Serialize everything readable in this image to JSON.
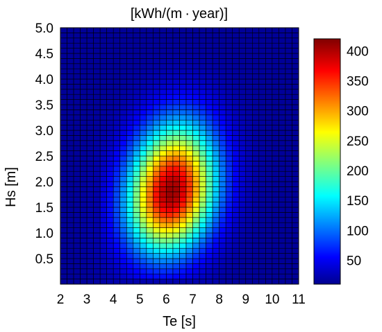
{
  "chart_data": {
    "type": "heatmap",
    "title": "[kWh/(m · year)]",
    "xlabel": "Te [s]",
    "ylabel": "Hs [m]",
    "xlim": [
      2,
      11
    ],
    "ylim": [
      0,
      5
    ],
    "x_ticks": [
      "2",
      "3",
      "4",
      "5",
      "6",
      "7",
      "8",
      "9",
      "10",
      "11"
    ],
    "y_ticks": [
      "0.5",
      "1.0",
      "1.5",
      "2.0",
      "2.5",
      "3.0",
      "3.5",
      "4.0",
      "4.5",
      "5.0"
    ],
    "colorbar": {
      "min": 10,
      "max": 420,
      "ticks": [
        "50",
        "100",
        "150",
        "200",
        "250",
        "300",
        "350",
        "400"
      ],
      "tick_values": [
        50,
        100,
        150,
        200,
        250,
        300,
        350,
        400
      ],
      "colormap": "jet"
    },
    "grid": {
      "x_bin_width": 0.25,
      "y_bin_height": 0.1,
      "x_start": 2,
      "y_start": 0,
      "x_bins": 36,
      "y_bins": 50
    },
    "distribution": {
      "peak_value": 410,
      "peak_te": 6.2,
      "peak_hs": 1.8,
      "background_value": 20
    }
  }
}
